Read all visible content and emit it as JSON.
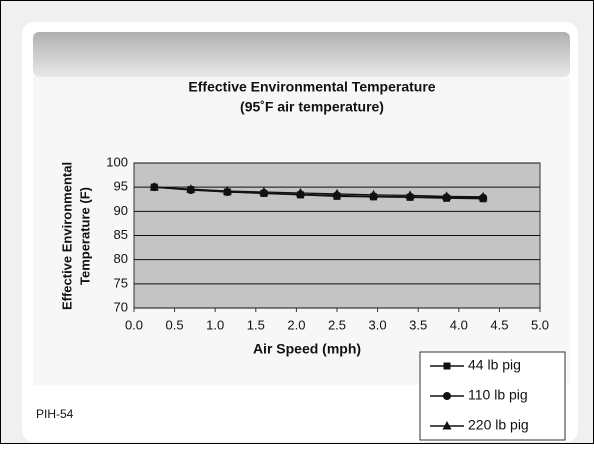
{
  "slide_label": "PIH-54",
  "chart_data": {
    "type": "line",
    "title": "Effective Environmental Temperature",
    "subtitle": "(95˚F air temperature)",
    "x_label": "Air Speed (mph)",
    "y_label": [
      "Effective Environmental",
      "Temperature (F)"
    ],
    "x": [
      0.25,
      0.7,
      1.15,
      1.6,
      2.05,
      2.5,
      2.95,
      3.4,
      3.85,
      4.3
    ],
    "series": [
      {
        "name": "44 lb pig",
        "color": "#111111",
        "marker": "square",
        "values": [
          95,
          94.5,
          94,
          93.7,
          93.4,
          93.1,
          93,
          92.9,
          92.7,
          92.6
        ]
      },
      {
        "name": "110 lb pig",
        "color": "#111111",
        "marker": "circle",
        "values": [
          95,
          94.4,
          94,
          93.8,
          93.5,
          93.3,
          93.1,
          93,
          92.9,
          92.8
        ]
      },
      {
        "name": "220 lb pig",
        "color": "#111111",
        "marker": "triangle",
        "values": [
          95,
          94.6,
          94.2,
          94,
          93.8,
          93.6,
          93.4,
          93.3,
          93.1,
          93
        ]
      }
    ],
    "xlim": [
      0,
      5
    ],
    "xticks": [
      {
        "value": 0,
        "label": "0.0"
      },
      0.5,
      {
        "value": 1,
        "label": "1.0"
      },
      1.5,
      {
        "value": 2,
        "label": "2.0"
      },
      2.5,
      {
        "value": 3,
        "label": "3.0"
      },
      3.5,
      {
        "value": 4,
        "label": "4.0"
      },
      4.5,
      {
        "value": 5,
        "label": "5.0"
      }
    ],
    "ylim": [
      70,
      100
    ],
    "yticks": [
      70,
      75,
      80,
      85,
      90,
      95,
      100
    ],
    "grid": true,
    "legend": "bottom-right"
  }
}
